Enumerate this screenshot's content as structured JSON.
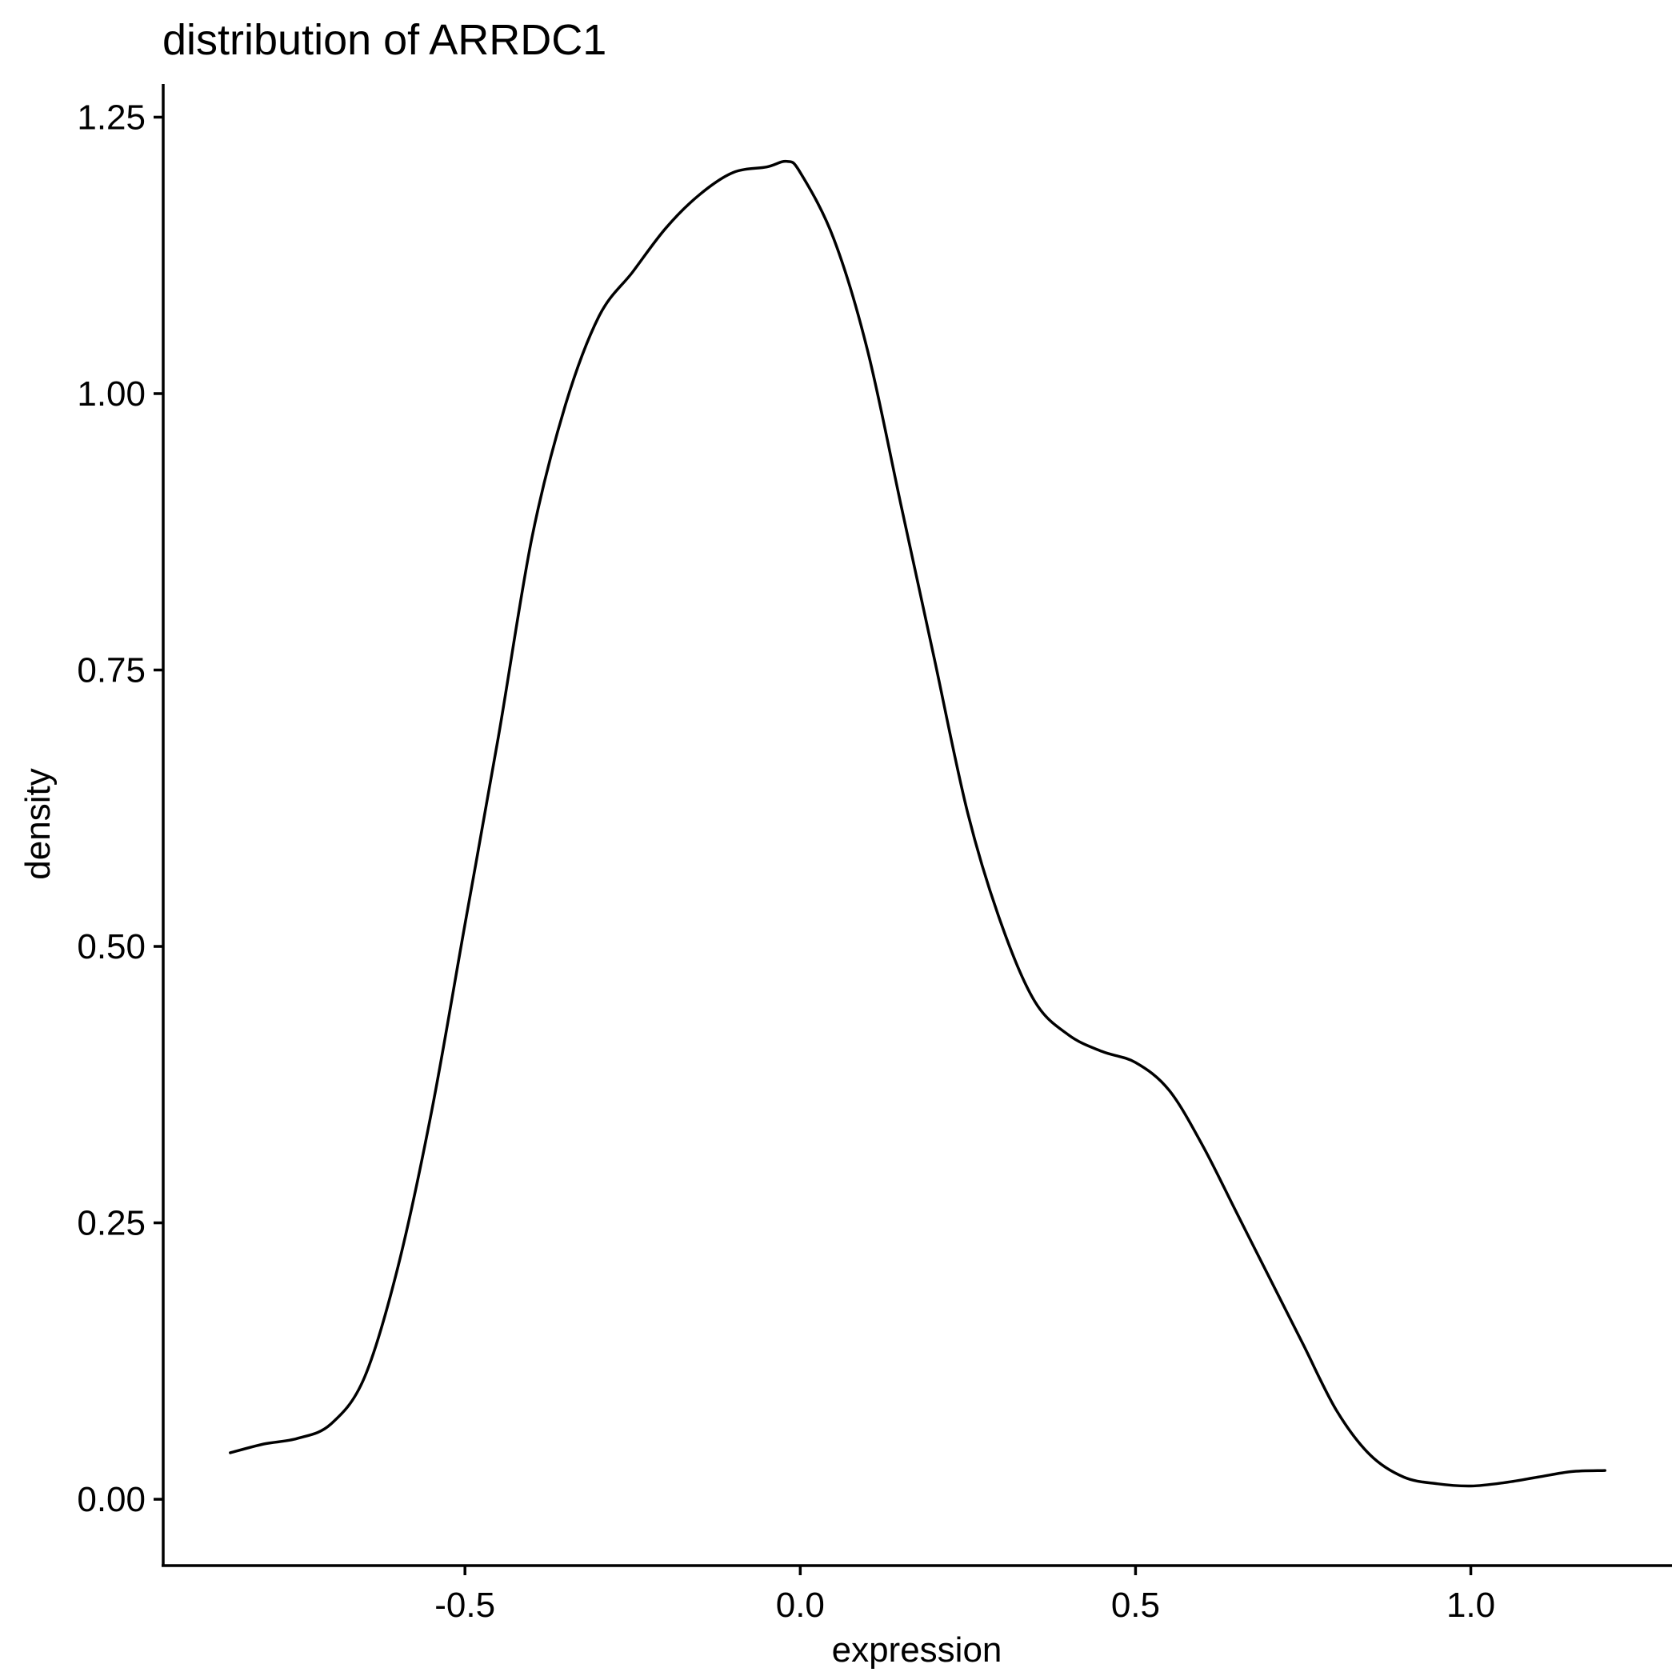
{
  "chart_data": {
    "type": "line",
    "title": "distribution of ARRDC1",
    "xlabel": "expression",
    "ylabel": "density",
    "xlim": [
      -0.95,
      1.3
    ],
    "ylim": [
      -0.06,
      1.28
    ],
    "x_ticks": [
      -0.5,
      0.0,
      0.5,
      1.0
    ],
    "x_tick_labels": [
      "-0.5",
      "0.0",
      "0.5",
      "1.0"
    ],
    "y_ticks": [
      0.0,
      0.25,
      0.5,
      0.75,
      1.0,
      1.25
    ],
    "y_tick_labels": [
      "0.00",
      "0.25",
      "0.50",
      "0.75",
      "1.00",
      "1.25"
    ],
    "grid": false,
    "legend": "none",
    "series": [
      {
        "color": "#000000",
        "x": [
          -0.85,
          -0.8,
          -0.75,
          -0.7,
          -0.65,
          -0.6,
          -0.55,
          -0.5,
          -0.45,
          -0.4,
          -0.35,
          -0.3,
          -0.25,
          -0.2,
          -0.15,
          -0.1,
          -0.05,
          -0.02,
          0.0,
          0.05,
          0.1,
          0.15,
          0.2,
          0.25,
          0.3,
          0.35,
          0.4,
          0.45,
          0.5,
          0.55,
          0.6,
          0.65,
          0.7,
          0.75,
          0.8,
          0.85,
          0.9,
          0.95,
          1.0,
          1.05,
          1.1,
          1.15,
          1.2
        ],
        "y": [
          0.042,
          0.05,
          0.055,
          0.068,
          0.11,
          0.21,
          0.35,
          0.52,
          0.69,
          0.87,
          0.99,
          1.07,
          1.11,
          1.15,
          1.18,
          1.2,
          1.205,
          1.21,
          1.2,
          1.14,
          1.04,
          0.9,
          0.76,
          0.62,
          0.52,
          0.45,
          0.42,
          0.405,
          0.395,
          0.37,
          0.32,
          0.26,
          0.2,
          0.14,
          0.08,
          0.04,
          0.02,
          0.014,
          0.012,
          0.015,
          0.02,
          0.025,
          0.026
        ]
      }
    ]
  }
}
